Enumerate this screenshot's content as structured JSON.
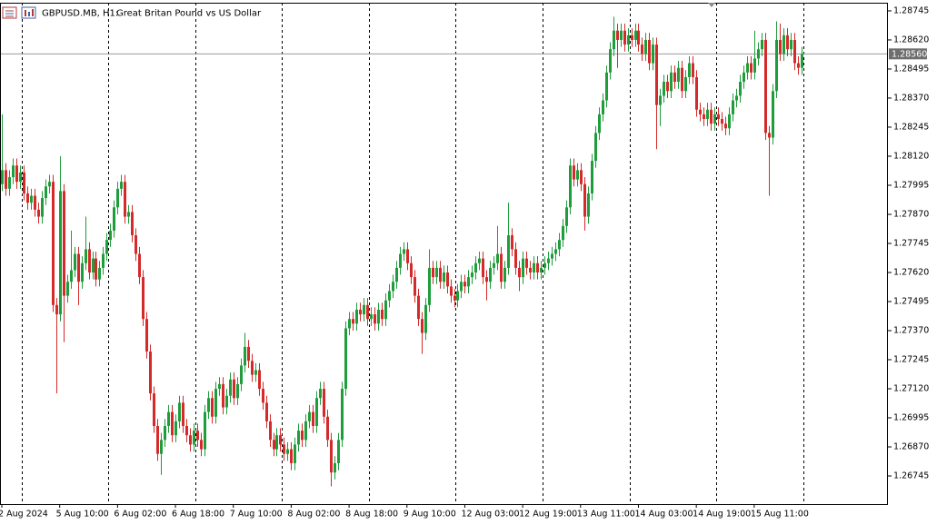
{
  "chart_data": {
    "type": "candlestick",
    "title": "GBPUSD.MB, H1:",
    "subtitle": "Great Britan Pound vs US Dollar",
    "up_color": "#1f9d3b",
    "down_color": "#d42a2a",
    "grid": true,
    "ylim": [
      1.26624,
      1.2878
    ],
    "yticks": [
      1.28745,
      {
        "value": 1.2862,
        "label": "1.28620"
      },
      1.28495,
      {
        "value": 1.2837,
        "label": "1.28370"
      },
      1.28245,
      {
        "value": 1.2812,
        "label": "1.28120"
      },
      1.27995,
      {
        "value": 1.2787,
        "label": "1.27870"
      },
      1.27745,
      {
        "value": 1.2762,
        "label": "1.27620"
      },
      1.27495,
      {
        "value": 1.2737,
        "label": "1.27370"
      },
      1.27245,
      {
        "value": 1.2712,
        "label": "1.27120"
      },
      1.26995,
      {
        "value": 1.2687,
        "label": "1.26870"
      },
      1.26745
    ],
    "current_price": 1.2856,
    "current_price_label": "1.28560",
    "x": [
      "2 Aug 2024",
      null,
      null,
      null,
      null,
      null,
      null,
      null,
      null,
      null,
      null,
      null,
      null,
      null,
      null,
      null,
      "5 Aug 10:00",
      null,
      null,
      null,
      null,
      null,
      null,
      null,
      null,
      null,
      null,
      null,
      null,
      null,
      null,
      null,
      "6 Aug 02:00",
      null,
      null,
      null,
      null,
      null,
      null,
      null,
      null,
      null,
      null,
      null,
      null,
      null,
      null,
      null,
      "6 Aug 18:00",
      null,
      null,
      null,
      null,
      null,
      null,
      null,
      null,
      null,
      null,
      null,
      null,
      null,
      null,
      null,
      "7 Aug 10:00",
      null,
      null,
      null,
      null,
      null,
      null,
      null,
      null,
      null,
      null,
      null,
      null,
      null,
      null,
      null,
      "8 Aug 02:00",
      null,
      null,
      null,
      null,
      null,
      null,
      null,
      null,
      null,
      null,
      null,
      null,
      null,
      null,
      null,
      "8 Aug 18:00",
      null,
      null,
      null,
      null,
      null,
      null,
      null,
      null,
      null,
      null,
      null,
      null,
      null,
      null,
      null,
      "9 Aug 10:00",
      null,
      null,
      null,
      null,
      null,
      null,
      null,
      null,
      null,
      null,
      null,
      null,
      null,
      null,
      null,
      "12 Aug 03:00",
      null,
      null,
      null,
      null,
      null,
      null,
      null,
      null,
      null,
      null,
      null,
      null,
      null,
      null,
      null,
      "12 Aug 19:00",
      null,
      null,
      null,
      null,
      null,
      null,
      null,
      null,
      null,
      null,
      null,
      null,
      null,
      null,
      null,
      "13 Aug 11:00",
      null,
      null,
      null,
      null,
      null,
      null,
      null,
      null,
      null,
      null,
      null,
      null,
      null,
      null,
      null,
      "14 Aug 03:00",
      null,
      null,
      null,
      null,
      null,
      null,
      null,
      null,
      null,
      null,
      null,
      null,
      null,
      null,
      null,
      "14 Aug 19:00",
      null,
      null,
      null,
      null,
      null,
      null,
      null,
      null,
      null,
      null,
      null,
      null,
      null,
      null,
      null,
      "15 Aug 11:00",
      null,
      null,
      null,
      null,
      null,
      null,
      null,
      null,
      null,
      null,
      null,
      null,
      null
    ],
    "open": [
      1.28,
      1.2806,
      1.2798,
      1.2803,
      1.2808,
      1.2801,
      1.2805,
      1.2796,
      1.2792,
      1.2795,
      1.2789,
      1.2786,
      1.2794,
      1.2799,
      1.2801,
      1.2748,
      1.2744,
      1.2797,
      1.2752,
      1.2758,
      1.2763,
      1.277,
      1.2758,
      1.2766,
      1.2772,
      1.2762,
      1.2768,
      1.2759,
      1.2764,
      1.277,
      1.2776,
      1.278,
      1.279,
      1.2798,
      1.2801,
      1.2786,
      1.2788,
      1.2778,
      1.277,
      1.276,
      1.2742,
      1.2728,
      1.271,
      1.2696,
      1.2684,
      1.269,
      1.2696,
      1.2702,
      1.2692,
      1.2698,
      1.2706,
      1.2696,
      1.2692,
      1.2688,
      1.2694,
      1.269,
      1.2686,
      1.2702,
      1.2708,
      1.27,
      1.2712,
      1.2714,
      1.2704,
      1.2709,
      1.2716,
      1.2708,
      1.2714,
      1.2722,
      1.273,
      1.2724,
      1.2718,
      1.272,
      1.2712,
      1.2706,
      1.2698,
      1.269,
      1.2686,
      1.2692,
      1.2688,
      1.2684,
      1.2686,
      1.268,
      1.2688,
      1.2694,
      1.269,
      1.2698,
      1.2702,
      1.2696,
      1.2708,
      1.2712,
      1.27,
      1.269,
      1.2676,
      1.268,
      1.269,
      1.2712,
      1.2738,
      1.2742,
      1.274,
      1.2746,
      1.2744,
      1.2748,
      1.2742,
      1.2744,
      1.274,
      1.2746,
      1.2742,
      1.275,
      1.2754,
      1.2758,
      1.2764,
      1.277,
      1.2772,
      1.2766,
      1.276,
      1.2752,
      1.2742,
      1.2736,
      1.2748,
      1.2764,
      1.276,
      1.2764,
      1.2758,
      1.2762,
      1.2756,
      1.2752,
      1.275,
      1.2754,
      1.2758,
      1.2756,
      1.276,
      1.2762,
      1.2766,
      1.2768,
      1.276,
      1.2758,
      1.2764,
      1.2766,
      1.277,
      1.2758,
      1.2764,
      1.2778,
      1.2772,
      1.2764,
      1.276,
      1.2768,
      1.2764,
      1.2762,
      1.2766,
      1.2762,
      1.2764,
      1.2766,
      1.2768,
      1.277,
      1.2772,
      1.2776,
      1.2782,
      1.279,
      1.2808,
      1.2802,
      1.2806,
      1.28,
      1.2786,
      1.2796,
      1.281,
      1.2822,
      1.283,
      1.2836,
      1.2848,
      1.2858,
      1.2866,
      1.2862,
      1.2866,
      1.286,
      1.2864,
      1.2862,
      1.2866,
      1.286,
      1.2856,
      1.2862,
      1.2852,
      1.286,
      1.2834,
      1.2838,
      1.2844,
      1.284,
      1.2848,
      1.2844,
      1.285,
      1.284,
      1.2846,
      1.2852,
      1.2846,
      1.2832,
      1.283,
      1.2828,
      1.2832,
      1.2826,
      1.283,
      1.2828,
      1.2826,
      1.2824,
      1.283,
      1.2836,
      1.2838,
      1.2844,
      1.2848,
      1.2852,
      1.2848,
      1.2854,
      1.2858,
      1.2862,
      1.2822,
      1.282,
      1.284,
      1.2862,
      1.2856,
      1.2864,
      1.2858,
      1.2862,
      1.2852,
      1.285
    ],
    "high": [
      1.283,
      1.2809,
      1.2806,
      1.2811,
      1.2811,
      1.2808,
      1.2808,
      1.2799,
      1.2798,
      1.2798,
      1.2792,
      1.2797,
      1.2802,
      1.2804,
      1.2804,
      1.2751,
      1.2812,
      1.28,
      1.2761,
      1.278,
      1.2773,
      1.2773,
      1.2769,
      1.2786,
      1.2775,
      1.2771,
      1.2771,
      1.2767,
      1.2773,
      1.2779,
      1.2783,
      1.2793,
      1.2801,
      1.2804,
      1.2804,
      1.2791,
      1.2791,
      1.2781,
      1.2773,
      1.2763,
      1.2745,
      1.2731,
      1.2713,
      1.2699,
      1.2693,
      1.2699,
      1.2705,
      1.2705,
      1.2701,
      1.2709,
      1.2709,
      1.2699,
      1.2695,
      1.2697,
      1.2697,
      1.2693,
      1.2705,
      1.2711,
      1.2711,
      1.2715,
      1.2717,
      1.2717,
      1.2712,
      1.2719,
      1.2719,
      1.2717,
      1.2725,
      1.2736,
      1.2733,
      1.2727,
      1.2723,
      1.2723,
      1.2715,
      1.2709,
      1.2701,
      1.2693,
      1.2695,
      1.2695,
      1.2691,
      1.2689,
      1.2689,
      1.2691,
      1.2697,
      1.2697,
      1.2701,
      1.2705,
      1.2705,
      1.2711,
      1.2715,
      1.2715,
      1.2703,
      1.2693,
      1.2683,
      1.2693,
      1.2715,
      1.2741,
      1.2745,
      1.2745,
      1.2749,
      1.2749,
      1.2751,
      1.2751,
      1.2747,
      1.2747,
      1.2749,
      1.2749,
      1.2753,
      1.2757,
      1.2761,
      1.2767,
      1.2773,
      1.2775,
      1.2775,
      1.2769,
      1.2763,
      1.2755,
      1.2745,
      1.2751,
      1.2772,
      1.2767,
      1.2767,
      1.2767,
      1.2765,
      1.2765,
      1.2759,
      1.2755,
      1.2757,
      1.2761,
      1.2761,
      1.2763,
      1.2765,
      1.2769,
      1.2771,
      1.2771,
      1.2763,
      1.2767,
      1.2769,
      1.2782,
      1.2773,
      1.2767,
      1.2792,
      1.2781,
      1.2775,
      1.2767,
      1.2771,
      1.2771,
      1.2767,
      1.2769,
      1.2769,
      1.2767,
      1.2769,
      1.2771,
      1.2773,
      1.2775,
      1.2779,
      1.2785,
      1.2793,
      1.2811,
      1.2811,
      1.2809,
      1.2809,
      1.2803,
      1.2799,
      1.2813,
      1.2825,
      1.2833,
      1.2839,
      1.2851,
      1.2861,
      1.2872,
      1.2869,
      1.2869,
      1.2869,
      1.2867,
      1.2867,
      1.2869,
      1.2869,
      1.2863,
      1.2865,
      1.2865,
      1.2863,
      1.2863,
      1.2841,
      1.2847,
      1.2847,
      1.2851,
      1.2851,
      1.2853,
      1.2853,
      1.2849,
      1.2855,
      1.2855,
      1.2849,
      1.2835,
      1.2833,
      1.2835,
      1.2835,
      1.2833,
      1.2833,
      1.2831,
      1.2829,
      1.2833,
      1.2839,
      1.2841,
      1.2847,
      1.2851,
      1.2855,
      1.2855,
      1.2866,
      1.2861,
      1.2865,
      1.2865,
      1.2825,
      1.2843,
      1.287,
      1.2869,
      1.2867,
      1.2867,
      1.2865,
      1.2865,
      1.2855,
      1.2859
    ],
    "low": [
      1.2797,
      1.2795,
      1.2795,
      1.28,
      1.2798,
      1.2798,
      1.2793,
      1.2789,
      1.2789,
      1.2786,
      1.2783,
      1.2783,
      1.2791,
      1.2796,
      1.2745,
      1.271,
      1.2741,
      1.2732,
      1.2749,
      1.2755,
      1.276,
      1.2748,
      1.2755,
      1.2763,
      1.2759,
      1.2759,
      1.2756,
      1.2756,
      1.2761,
      1.2767,
      1.2773,
      1.2777,
      1.2787,
      1.2795,
      1.2783,
      1.2783,
      1.2775,
      1.2767,
      1.2757,
      1.2739,
      1.2725,
      1.2707,
      1.2693,
      1.2681,
      1.2675,
      1.2687,
      1.2693,
      1.2689,
      1.2689,
      1.2695,
      1.2693,
      1.2689,
      1.2685,
      1.2685,
      1.2687,
      1.2683,
      1.2683,
      1.2699,
      1.2697,
      1.2697,
      1.2709,
      1.2701,
      1.2701,
      1.2706,
      1.2705,
      1.2705,
      1.2711,
      1.2719,
      1.2721,
      1.2715,
      1.2715,
      1.2709,
      1.2703,
      1.2695,
      1.2687,
      1.2683,
      1.2683,
      1.2685,
      1.2681,
      1.2681,
      1.2677,
      1.2677,
      1.2685,
      1.2687,
      1.2687,
      1.2695,
      1.2693,
      1.2693,
      1.2705,
      1.2697,
      1.2687,
      1.267,
      1.2673,
      1.2677,
      1.2687,
      1.2709,
      1.2735,
      1.2737,
      1.2737,
      1.2741,
      1.2741,
      1.2739,
      1.2739,
      1.2737,
      1.2737,
      1.2739,
      1.2739,
      1.2747,
      1.2751,
      1.2755,
      1.2761,
      1.2767,
      1.2763,
      1.2757,
      1.2749,
      1.2739,
      1.2727,
      1.2733,
      1.2745,
      1.2757,
      1.2757,
      1.2755,
      1.2755,
      1.2753,
      1.2749,
      1.2747,
      1.2747,
      1.2751,
      1.2753,
      1.2753,
      1.2757,
      1.2759,
      1.2763,
      1.2757,
      1.275,
      1.2755,
      1.2761,
      1.2763,
      1.2755,
      1.2755,
      1.2761,
      1.2769,
      1.2761,
      1.2754,
      1.2757,
      1.2761,
      1.2759,
      1.2759,
      1.2759,
      1.2759,
      1.2761,
      1.2763,
      1.2765,
      1.2767,
      1.2769,
      1.2773,
      1.2779,
      1.2787,
      1.2799,
      1.2799,
      1.2797,
      1.278,
      1.2783,
      1.2793,
      1.2807,
      1.2819,
      1.2827,
      1.2833,
      1.2845,
      1.2855,
      1.285,
      1.2859,
      1.2857,
      1.2857,
      1.2859,
      1.2859,
      1.2857,
      1.2853,
      1.2853,
      1.2849,
      1.2849,
      1.2815,
      1.2825,
      1.2835,
      1.2837,
      1.2837,
      1.2841,
      1.2841,
      1.2837,
      1.2837,
      1.2843,
      1.2843,
      1.2829,
      1.2827,
      1.2825,
      1.2825,
      1.2823,
      1.2823,
      1.2825,
      1.2823,
      1.2821,
      1.2821,
      1.2827,
      1.2833,
      1.2835,
      1.2841,
      1.2845,
      1.2845,
      1.2845,
      1.2851,
      1.2855,
      1.2819,
      1.2795,
      1.2817,
      1.2837,
      1.2853,
      1.2853,
      1.2855,
      1.2855,
      1.2849,
      1.2847,
      1.2847
    ],
    "close": [
      1.2806,
      1.2798,
      1.2803,
      1.2808,
      1.2801,
      1.2805,
      1.2796,
      1.2792,
      1.2795,
      1.2789,
      1.2786,
      1.2794,
      1.2799,
      1.2801,
      1.2748,
      1.2744,
      1.2797,
      1.2752,
      1.2758,
      1.2763,
      1.277,
      1.2758,
      1.2766,
      1.2772,
      1.2762,
      1.2768,
      1.2759,
      1.2764,
      1.277,
      1.2776,
      1.278,
      1.279,
      1.2798,
      1.2801,
      1.2786,
      1.2788,
      1.2778,
      1.277,
      1.276,
      1.2742,
      1.2728,
      1.271,
      1.2696,
      1.2684,
      1.269,
      1.2696,
      1.2702,
      1.2692,
      1.2698,
      1.2706,
      1.2696,
      1.2692,
      1.2688,
      1.2694,
      1.269,
      1.2686,
      1.2702,
      1.2708,
      1.27,
      1.2712,
      1.2714,
      1.2704,
      1.2709,
      1.2716,
      1.2708,
      1.2714,
      1.2722,
      1.273,
      1.2724,
      1.2718,
      1.272,
      1.2712,
      1.2706,
      1.2698,
      1.269,
      1.2686,
      1.2692,
      1.2688,
      1.2684,
      1.2686,
      1.268,
      1.2688,
      1.2694,
      1.269,
      1.2698,
      1.2702,
      1.2696,
      1.2708,
      1.2712,
      1.27,
      1.269,
      1.2676,
      1.268,
      1.269,
      1.2712,
      1.2738,
      1.2742,
      1.274,
      1.2746,
      1.2744,
      1.2748,
      1.2742,
      1.2744,
      1.274,
      1.2746,
      1.2742,
      1.275,
      1.2754,
      1.2758,
      1.2764,
      1.277,
      1.2772,
      1.2766,
      1.276,
      1.2752,
      1.2742,
      1.2736,
      1.2748,
      1.2764,
      1.276,
      1.2764,
      1.2758,
      1.2762,
      1.2756,
      1.2752,
      1.275,
      1.2754,
      1.2758,
      1.2756,
      1.276,
      1.2762,
      1.2766,
      1.2768,
      1.276,
      1.2758,
      1.2764,
      1.2766,
      1.277,
      1.2758,
      1.2764,
      1.2778,
      1.2772,
      1.2764,
      1.276,
      1.2768,
      1.2764,
      1.2762,
      1.2766,
      1.2762,
      1.2764,
      1.2766,
      1.2768,
      1.277,
      1.2772,
      1.2776,
      1.2782,
      1.279,
      1.2808,
      1.2802,
      1.2806,
      1.28,
      1.2786,
      1.2796,
      1.281,
      1.2822,
      1.283,
      1.2836,
      1.2848,
      1.2858,
      1.2866,
      1.2862,
      1.2866,
      1.286,
      1.2864,
      1.2862,
      1.2866,
      1.286,
      1.2856,
      1.2862,
      1.2852,
      1.286,
      1.2834,
      1.2838,
      1.2844,
      1.284,
      1.2848,
      1.2844,
      1.285,
      1.284,
      1.2846,
      1.2852,
      1.2846,
      1.2832,
      1.283,
      1.2828,
      1.2832,
      1.2826,
      1.283,
      1.2828,
      1.2826,
      1.2824,
      1.283,
      1.2836,
      1.2838,
      1.2844,
      1.2848,
      1.2852,
      1.2848,
      1.2854,
      1.2858,
      1.2862,
      1.2822,
      1.282,
      1.284,
      1.2862,
      1.2856,
      1.2864,
      1.2858,
      1.2862,
      1.2852,
      1.285,
      1.2856
    ]
  }
}
